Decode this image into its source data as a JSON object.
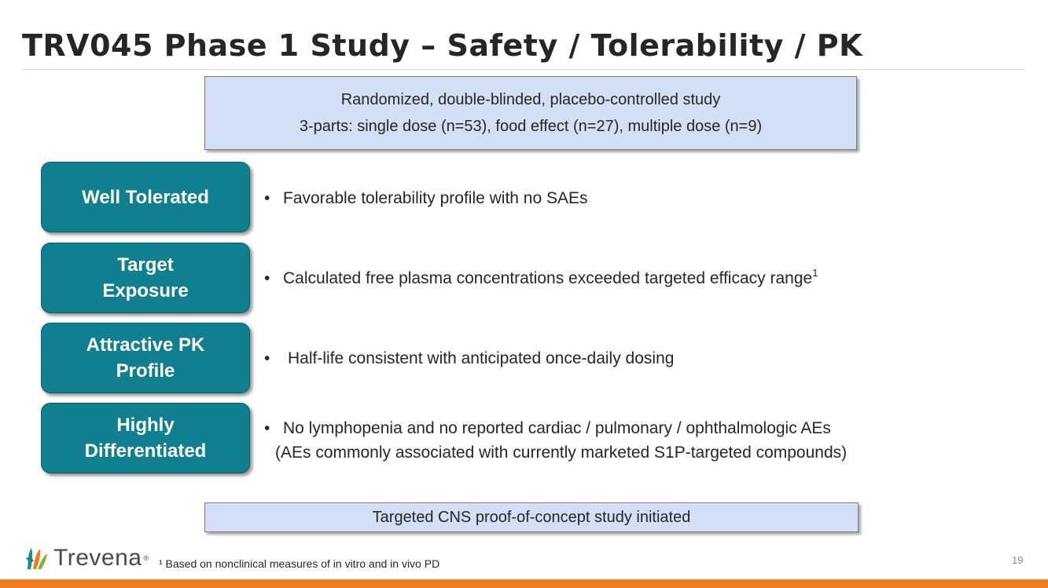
{
  "title": "TRV045 Phase 1 Study – Safety / Tolerability / PK",
  "study_box": {
    "line1": "Randomized, double-blinded, placebo-controlled study",
    "line2": "3-parts: single dose (n=53), food effect (n=27), multiple dose (n=9)"
  },
  "rows": [
    {
      "label_line1": "Well Tolerated",
      "label_line2": "",
      "bullet": "Favorable tolerability profile with no SAEs",
      "bullet_sup": "",
      "bullet_line2": ""
    },
    {
      "label_line1": "Target",
      "label_line2": "Exposure",
      "bullet": "Calculated free plasma concentrations exceeded targeted efficacy range",
      "bullet_sup": "1",
      "bullet_line2": ""
    },
    {
      "label_line1": "Attractive PK",
      "label_line2": "Profile",
      "bullet": "Half-life consistent with anticipated once-daily dosing",
      "bullet_sup": "",
      "bullet_line2": ""
    },
    {
      "label_line1": "Highly",
      "label_line2": "Differentiated",
      "bullet": "No lymphopenia and no reported cardiac / pulmonary / ophthalmologic AEs",
      "bullet_sup": "",
      "bullet_line2": "(AEs commonly associated with currently marketed S1P-targeted compounds)"
    }
  ],
  "bullet_symbol": "•",
  "conclusion": "Targeted CNS proof-of-concept study initiated",
  "footer": {
    "logo_text": "Trevena",
    "logo_reg": "®",
    "footnote": "¹ Based on nonclinical measures of in vitro and in vivo PD",
    "page_number": "19"
  },
  "colors": {
    "accent_teal": "#107f8f",
    "box_blue": "#d3dff4",
    "bar_orange": "#f27b21"
  },
  "icons": {
    "logo": "trevena-leaf-logo-icon"
  }
}
